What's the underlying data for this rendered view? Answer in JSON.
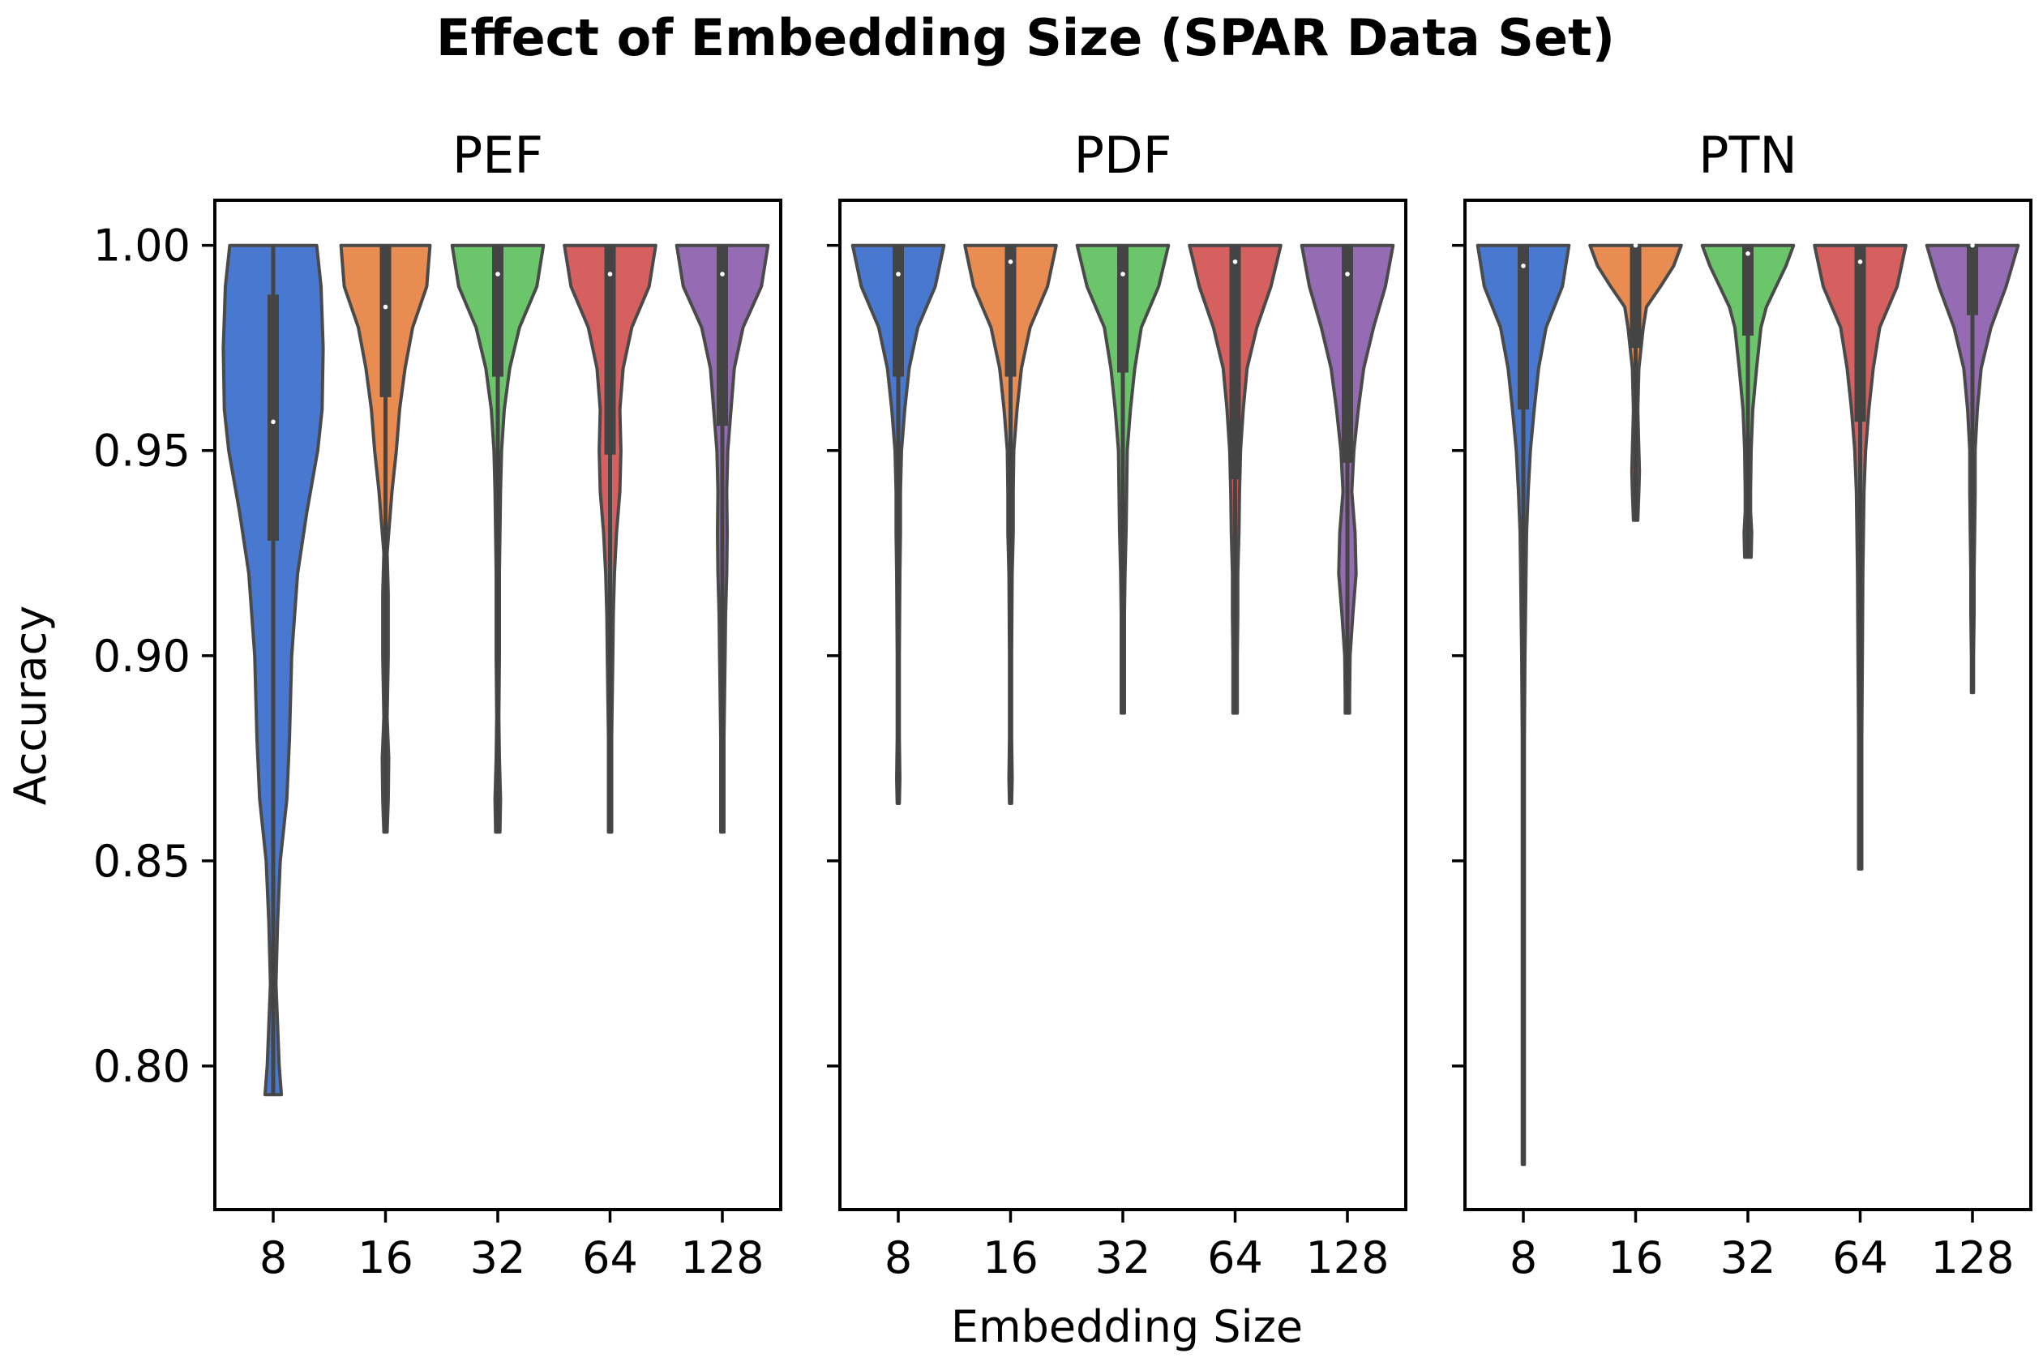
{
  "chart_data": {
    "type": "violin",
    "title": "Effect of Embedding Size (SPAR Data Set)",
    "xlabel": "Embedding Size",
    "ylabel": "Accuracy",
    "ylim": [
      0.765,
      1.011
    ],
    "yticks": [
      0.8,
      0.85,
      0.9,
      0.95,
      1.0
    ],
    "ytick_labels": [
      "0.80",
      "0.85",
      "0.90",
      "0.95",
      "1.00"
    ],
    "categories": [
      "8",
      "16",
      "32",
      "64",
      "128"
    ],
    "colors": [
      "#4878cf",
      "#e88c52",
      "#6bc56b",
      "#d65f5f",
      "#956cb4"
    ],
    "panels": [
      {
        "title": "PEF",
        "violins": [
          {
            "min": 0.793,
            "max": 1.0,
            "q1": 0.928,
            "median": 0.957,
            "q3": 0.988,
            "density": [
              [
                1.0,
                0.8
              ],
              [
                0.99,
                0.88
              ],
              [
                0.975,
                0.92
              ],
              [
                0.96,
                0.9
              ],
              [
                0.95,
                0.82
              ],
              [
                0.935,
                0.62
              ],
              [
                0.92,
                0.45
              ],
              [
                0.9,
                0.34
              ],
              [
                0.88,
                0.3
              ],
              [
                0.865,
                0.25
              ],
              [
                0.85,
                0.13
              ],
              [
                0.835,
                0.08
              ],
              [
                0.82,
                0.05
              ],
              [
                0.8,
                0.11
              ],
              [
                0.793,
                0.15
              ]
            ]
          },
          {
            "min": 0.857,
            "max": 1.0,
            "q1": 0.963,
            "median": 0.985,
            "q3": 1.0,
            "density": [
              [
                1.0,
                0.82
              ],
              [
                0.99,
                0.76
              ],
              [
                0.98,
                0.5
              ],
              [
                0.97,
                0.36
              ],
              [
                0.96,
                0.26
              ],
              [
                0.95,
                0.2
              ],
              [
                0.94,
                0.12
              ],
              [
                0.93,
                0.06
              ],
              [
                0.925,
                0.03
              ],
              [
                0.915,
                0.05
              ],
              [
                0.9,
                0.05
              ],
              [
                0.885,
                0.03
              ],
              [
                0.875,
                0.06
              ],
              [
                0.865,
                0.05
              ],
              [
                0.857,
                0.03
              ]
            ]
          },
          {
            "min": 0.857,
            "max": 1.0,
            "q1": 0.968,
            "median": 0.993,
            "q3": 1.0,
            "density": [
              [
                1.0,
                0.84
              ],
              [
                0.99,
                0.72
              ],
              [
                0.98,
                0.4
              ],
              [
                0.97,
                0.22
              ],
              [
                0.96,
                0.12
              ],
              [
                0.95,
                0.07
              ],
              [
                0.94,
                0.05
              ],
              [
                0.93,
                0.04
              ],
              [
                0.92,
                0.03
              ],
              [
                0.9,
                0.03
              ],
              [
                0.885,
                0.02
              ],
              [
                0.875,
                0.03
              ],
              [
                0.865,
                0.05
              ],
              [
                0.857,
                0.04
              ]
            ]
          },
          {
            "min": 0.857,
            "max": 1.0,
            "q1": 0.949,
            "median": 0.993,
            "q3": 1.0,
            "density": [
              [
                1.0,
                0.84
              ],
              [
                0.99,
                0.72
              ],
              [
                0.98,
                0.4
              ],
              [
                0.97,
                0.24
              ],
              [
                0.96,
                0.18
              ],
              [
                0.95,
                0.2
              ],
              [
                0.94,
                0.18
              ],
              [
                0.93,
                0.12
              ],
              [
                0.92,
                0.08
              ],
              [
                0.91,
                0.06
              ],
              [
                0.9,
                0.05
              ],
              [
                0.89,
                0.04
              ],
              [
                0.88,
                0.03
              ],
              [
                0.87,
                0.03
              ],
              [
                0.857,
                0.03
              ]
            ]
          },
          {
            "min": 0.857,
            "max": 1.0,
            "q1": 0.956,
            "median": 0.993,
            "q3": 1.0,
            "density": [
              [
                1.0,
                0.84
              ],
              [
                0.99,
                0.72
              ],
              [
                0.98,
                0.38
              ],
              [
                0.97,
                0.22
              ],
              [
                0.96,
                0.16
              ],
              [
                0.95,
                0.1
              ],
              [
                0.94,
                0.08
              ],
              [
                0.93,
                0.09
              ],
              [
                0.92,
                0.08
              ],
              [
                0.91,
                0.06
              ],
              [
                0.9,
                0.05
              ],
              [
                0.89,
                0.04
              ],
              [
                0.88,
                0.03
              ],
              [
                0.87,
                0.03
              ],
              [
                0.857,
                0.03
              ]
            ]
          }
        ]
      },
      {
        "title": "PDF",
        "violins": [
          {
            "min": 0.864,
            "max": 1.0,
            "q1": 0.968,
            "median": 0.993,
            "q3": 1.0,
            "density": [
              [
                1.0,
                0.84
              ],
              [
                0.99,
                0.68
              ],
              [
                0.98,
                0.36
              ],
              [
                0.97,
                0.2
              ],
              [
                0.96,
                0.12
              ],
              [
                0.95,
                0.06
              ],
              [
                0.94,
                0.04
              ],
              [
                0.93,
                0.04
              ],
              [
                0.92,
                0.03
              ],
              [
                0.9,
                0.02
              ],
              [
                0.89,
                0.02
              ],
              [
                0.88,
                0.02
              ],
              [
                0.87,
                0.03
              ],
              [
                0.864,
                0.02
              ]
            ]
          },
          {
            "min": 0.864,
            "max": 1.0,
            "q1": 0.968,
            "median": 0.996,
            "q3": 1.0,
            "density": [
              [
                1.0,
                0.84
              ],
              [
                0.99,
                0.68
              ],
              [
                0.98,
                0.36
              ],
              [
                0.97,
                0.2
              ],
              [
                0.96,
                0.12
              ],
              [
                0.95,
                0.06
              ],
              [
                0.94,
                0.05
              ],
              [
                0.93,
                0.05
              ],
              [
                0.92,
                0.03
              ],
              [
                0.9,
                0.02
              ],
              [
                0.89,
                0.02
              ],
              [
                0.88,
                0.02
              ],
              [
                0.87,
                0.03
              ],
              [
                0.864,
                0.02
              ]
            ]
          },
          {
            "min": 0.886,
            "max": 1.0,
            "q1": 0.969,
            "median": 0.993,
            "q3": 1.0,
            "density": [
              [
                1.0,
                0.84
              ],
              [
                0.99,
                0.66
              ],
              [
                0.98,
                0.34
              ],
              [
                0.97,
                0.22
              ],
              [
                0.96,
                0.14
              ],
              [
                0.95,
                0.08
              ],
              [
                0.94,
                0.07
              ],
              [
                0.93,
                0.06
              ],
              [
                0.92,
                0.04
              ],
              [
                0.91,
                0.03
              ],
              [
                0.9,
                0.03
              ],
              [
                0.89,
                0.03
              ],
              [
                0.886,
                0.03
              ]
            ]
          },
          {
            "min": 0.886,
            "max": 1.0,
            "q1": 0.943,
            "median": 0.996,
            "q3": 1.0,
            "density": [
              [
                1.0,
                0.84
              ],
              [
                0.99,
                0.66
              ],
              [
                0.98,
                0.4
              ],
              [
                0.97,
                0.22
              ],
              [
                0.96,
                0.15
              ],
              [
                0.95,
                0.1
              ],
              [
                0.94,
                0.08
              ],
              [
                0.93,
                0.07
              ],
              [
                0.92,
                0.05
              ],
              [
                0.91,
                0.05
              ],
              [
                0.9,
                0.04
              ],
              [
                0.89,
                0.04
              ],
              [
                0.886,
                0.04
              ]
            ]
          },
          {
            "min": 0.886,
            "max": 1.0,
            "q1": 0.947,
            "median": 0.993,
            "q3": 1.0,
            "density": [
              [
                1.0,
                0.84
              ],
              [
                0.99,
                0.7
              ],
              [
                0.98,
                0.48
              ],
              [
                0.97,
                0.3
              ],
              [
                0.96,
                0.2
              ],
              [
                0.95,
                0.12
              ],
              [
                0.94,
                0.08
              ],
              [
                0.93,
                0.14
              ],
              [
                0.92,
                0.16
              ],
              [
                0.91,
                0.1
              ],
              [
                0.9,
                0.05
              ],
              [
                0.89,
                0.04
              ],
              [
                0.886,
                0.04
              ]
            ]
          }
        ]
      },
      {
        "title": "PTN",
        "violins": [
          {
            "min": 0.776,
            "max": 1.0,
            "q1": 0.96,
            "median": 0.995,
            "q3": 1.0,
            "density": [
              [
                1.0,
                0.84
              ],
              [
                0.99,
                0.72
              ],
              [
                0.98,
                0.42
              ],
              [
                0.97,
                0.28
              ],
              [
                0.96,
                0.2
              ],
              [
                0.95,
                0.13
              ],
              [
                0.94,
                0.09
              ],
              [
                0.93,
                0.06
              ],
              [
                0.92,
                0.05
              ],
              [
                0.91,
                0.04
              ],
              [
                0.9,
                0.03
              ],
              [
                0.88,
                0.02
              ],
              [
                0.86,
                0.02
              ],
              [
                0.84,
                0.02
              ],
              [
                0.82,
                0.02
              ],
              [
                0.8,
                0.02
              ],
              [
                0.776,
                0.02
              ]
            ]
          },
          {
            "min": 0.933,
            "max": 1.0,
            "q1": 0.975,
            "median": 1.0,
            "q3": 1.0,
            "density": [
              [
                1.0,
                0.84
              ],
              [
                0.995,
                0.7
              ],
              [
                0.99,
                0.46
              ],
              [
                0.985,
                0.2
              ],
              [
                0.98,
                0.14
              ],
              [
                0.975,
                0.1
              ],
              [
                0.97,
                0.06
              ],
              [
                0.96,
                0.04
              ],
              [
                0.955,
                0.05
              ],
              [
                0.945,
                0.07
              ],
              [
                0.94,
                0.06
              ],
              [
                0.933,
                0.04
              ]
            ]
          },
          {
            "min": 0.924,
            "max": 1.0,
            "q1": 0.978,
            "median": 0.998,
            "q3": 1.0,
            "density": [
              [
                1.0,
                0.84
              ],
              [
                0.995,
                0.7
              ],
              [
                0.99,
                0.52
              ],
              [
                0.985,
                0.34
              ],
              [
                0.98,
                0.24
              ],
              [
                0.97,
                0.16
              ],
              [
                0.96,
                0.09
              ],
              [
                0.95,
                0.06
              ],
              [
                0.94,
                0.05
              ],
              [
                0.935,
                0.05
              ],
              [
                0.93,
                0.07
              ],
              [
                0.924,
                0.06
              ]
            ]
          },
          {
            "min": 0.848,
            "max": 1.0,
            "q1": 0.957,
            "median": 0.996,
            "q3": 1.0,
            "density": [
              [
                1.0,
                0.84
              ],
              [
                0.99,
                0.68
              ],
              [
                0.98,
                0.36
              ],
              [
                0.97,
                0.24
              ],
              [
                0.96,
                0.16
              ],
              [
                0.95,
                0.1
              ],
              [
                0.94,
                0.07
              ],
              [
                0.92,
                0.05
              ],
              [
                0.9,
                0.04
              ],
              [
                0.88,
                0.03
              ],
              [
                0.86,
                0.03
              ],
              [
                0.848,
                0.03
              ]
            ]
          },
          {
            "min": 0.891,
            "max": 1.0,
            "q1": 0.983,
            "median": 1.0,
            "q3": 1.0,
            "density": [
              [
                1.0,
                0.84
              ],
              [
                0.99,
                0.62
              ],
              [
                0.98,
                0.34
              ],
              [
                0.97,
                0.16
              ],
              [
                0.96,
                0.09
              ],
              [
                0.95,
                0.05
              ],
              [
                0.94,
                0.05
              ],
              [
                0.93,
                0.04
              ],
              [
                0.92,
                0.03
              ],
              [
                0.91,
                0.03
              ],
              [
                0.9,
                0.02
              ],
              [
                0.891,
                0.02
              ]
            ]
          }
        ]
      }
    ]
  }
}
